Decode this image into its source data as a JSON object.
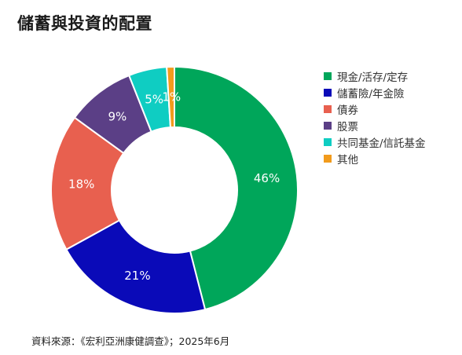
{
  "title": "儲蓄與投資的配置",
  "source": "資料來源：《宏利亞洲康健調查》；2025年6月",
  "chart_data": {
    "type": "pie",
    "donut": true,
    "legend_position": "right",
    "series": [
      {
        "name": "現金/活存/定存",
        "value": 46,
        "label": "46%",
        "color": "#00a65a"
      },
      {
        "name": "儲蓄險/年金險",
        "value": 21,
        "label": "21%",
        "color": "#0a0ab8"
      },
      {
        "name": "債券",
        "value": 18,
        "label": "18%",
        "color": "#e8604f"
      },
      {
        "name": "股票",
        "value": 9,
        "label": "9%",
        "color": "#5b3f86"
      },
      {
        "name": "共同基金/信託基金",
        "value": 5,
        "label": "5%",
        "color": "#0fcdc2"
      },
      {
        "name": "其他",
        "value": 1,
        "label": "1%",
        "color": "#f29b1c"
      }
    ]
  }
}
